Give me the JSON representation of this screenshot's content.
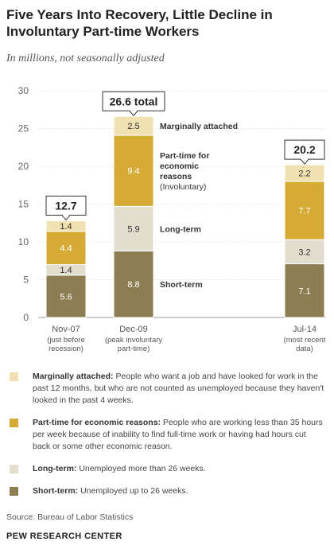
{
  "title": "Five Years Into Recovery, Little Decline in Involuntary Part-time Workers",
  "subtitle": "In millions, not seasonally adjusted",
  "chart_data": {
    "type": "bar",
    "stacked": true,
    "categories": [
      "Nov-07",
      "Dec-09",
      "Jul-14"
    ],
    "category_notes": [
      [
        "(just before",
        "recession)"
      ],
      [
        "(peak involuntary",
        "part-time)"
      ],
      [
        "(most recent",
        "data)"
      ]
    ],
    "totals": [
      "12.7",
      "26.6 total",
      "20.2"
    ],
    "total_values": [
      12.7,
      26.6,
      20.2
    ],
    "ylim": [
      0,
      30
    ],
    "yticks": [
      0,
      5,
      10,
      15,
      20,
      25,
      30
    ],
    "grid": true,
    "series": [
      {
        "name": "Short-term",
        "color": "#8c7d52",
        "values": [
          5.6,
          8.8,
          7.1
        ],
        "value_labels": [
          "5.6",
          "8.8",
          "7.1"
        ]
      },
      {
        "name": "Long-term",
        "color": "#e2ddcd",
        "values": [
          1.4,
          5.9,
          3.2
        ],
        "value_labels": [
          "1.4",
          "5.9",
          "3.2"
        ]
      },
      {
        "name": "Part-time for economic reasons",
        "color": "#d6ab35",
        "values": [
          4.4,
          9.4,
          7.7
        ],
        "value_labels": [
          "4.4",
          "9.4",
          "7.7"
        ]
      },
      {
        "name": "Marginally attached",
        "color": "#f1e1b0",
        "values": [
          1.4,
          2.5,
          2.2
        ],
        "value_labels": [
          "1.4",
          "2.5",
          "2.2"
        ]
      }
    ],
    "annotations": [
      {
        "series": 3,
        "lines": [
          "Marginally attached"
        ]
      },
      {
        "series": 2,
        "lines": [
          "Part-time for",
          "economic",
          "reasons",
          "(Involuntary)"
        ],
        "bold_lines": 3
      },
      {
        "series": 1,
        "lines": [
          "Long-term"
        ]
      },
      {
        "series": 0,
        "lines": [
          "Short-term"
        ]
      }
    ]
  },
  "legend": [
    {
      "color": "#f1e1b0",
      "term": "Marginally attached:",
      "text": " People who want a job and have looked for work in the past 12 months, but who are not counted as unemployed because they haven't looked in the past 4 weeks."
    },
    {
      "color": "#d6ab35",
      "term": "Part-time for economic reasons:",
      "text": " People who are working less than 35 hours per week because of inability to find full-time work or having had hours cut back or some other economic reason."
    },
    {
      "color": "#e2ddcd",
      "term": "Long-term:",
      "text": " Unemployed more than 26 weeks."
    },
    {
      "color": "#8c7d52",
      "term": "Short-term:",
      "text": " Unemployed up to 26 weeks."
    }
  ],
  "source": "Source: Bureau of Labor Statistics",
  "organization": "PEW RESEARCH CENTER"
}
